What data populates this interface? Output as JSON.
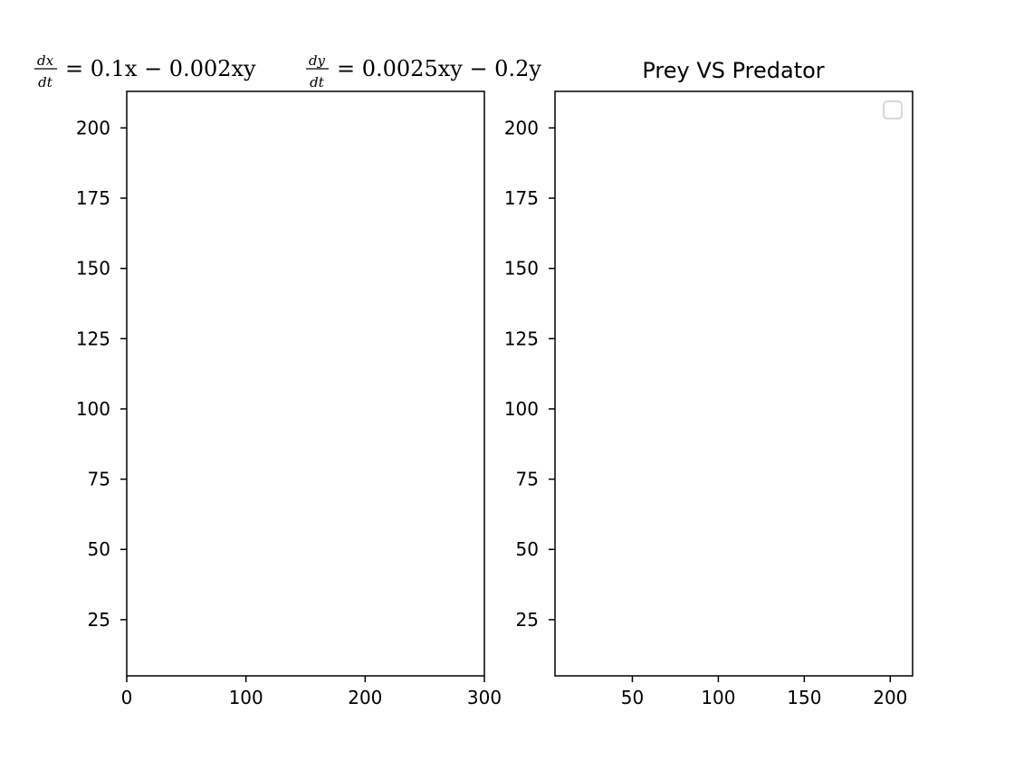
{
  "chart_data": [
    {
      "type": "line",
      "title": {
        "frac1_num": "dx",
        "frac1_den": "dt",
        "eq1": "= 0.1x − 0.002xy",
        "frac2_num": "dy",
        "frac2_den": "dt",
        "eq2": "= 0.0025xy − 0.2y"
      },
      "xlabel": "",
      "ylabel": "",
      "xlim": [
        0,
        300
      ],
      "ylim": [
        5,
        213
      ],
      "xticks": [
        0,
        100,
        200,
        300
      ],
      "yticks": [
        25,
        50,
        75,
        100,
        125,
        150,
        175,
        200
      ],
      "series": [],
      "grid": false
    },
    {
      "type": "line",
      "title": "Prey VS Predator",
      "xlabel": "",
      "ylabel": "",
      "xlim": [
        5,
        213
      ],
      "ylim": [
        5,
        213
      ],
      "xticks": [
        50,
        100,
        150,
        200
      ],
      "yticks": [
        25,
        50,
        75,
        100,
        125,
        150,
        175,
        200
      ],
      "series": [],
      "grid": false,
      "legend": {
        "placement": "upper right",
        "entries": []
      }
    }
  ]
}
